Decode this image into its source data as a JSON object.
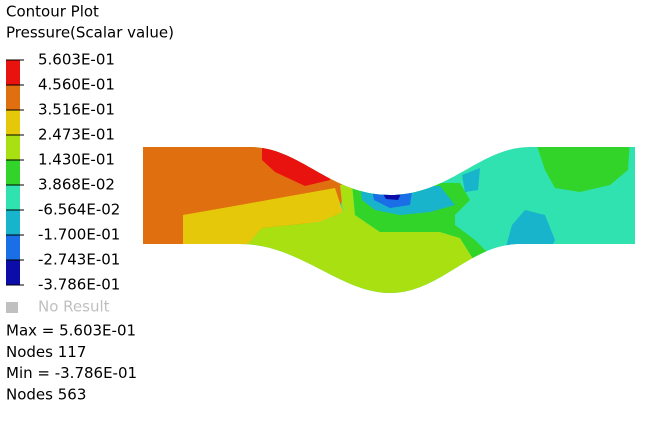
{
  "header": {
    "title": "Contour Plot",
    "subtitle": "Pressure(Scalar value)"
  },
  "legend": {
    "levels": [
      "5.603E-01",
      "4.560E-01",
      "3.516E-01",
      "2.473E-01",
      "1.430E-01",
      "3.868E-02",
      "-6.564E-02",
      "-1.700E-01",
      "-2.743E-01",
      "-3.786E-01"
    ],
    "band_colors": [
      "#e8120f",
      "#e0700f",
      "#e6c80a",
      "#a8e012",
      "#32d42a",
      "#30e2b0",
      "#18b4cc",
      "#1a6ee6",
      "#0c0ca8"
    ],
    "no_result": "No Result",
    "no_result_color": "#c0c0c0"
  },
  "stats": [
    "Max =  5.603E-01",
    "Nodes 117",
    "Min = -3.786E-01",
    "Nodes 563"
  ]
}
